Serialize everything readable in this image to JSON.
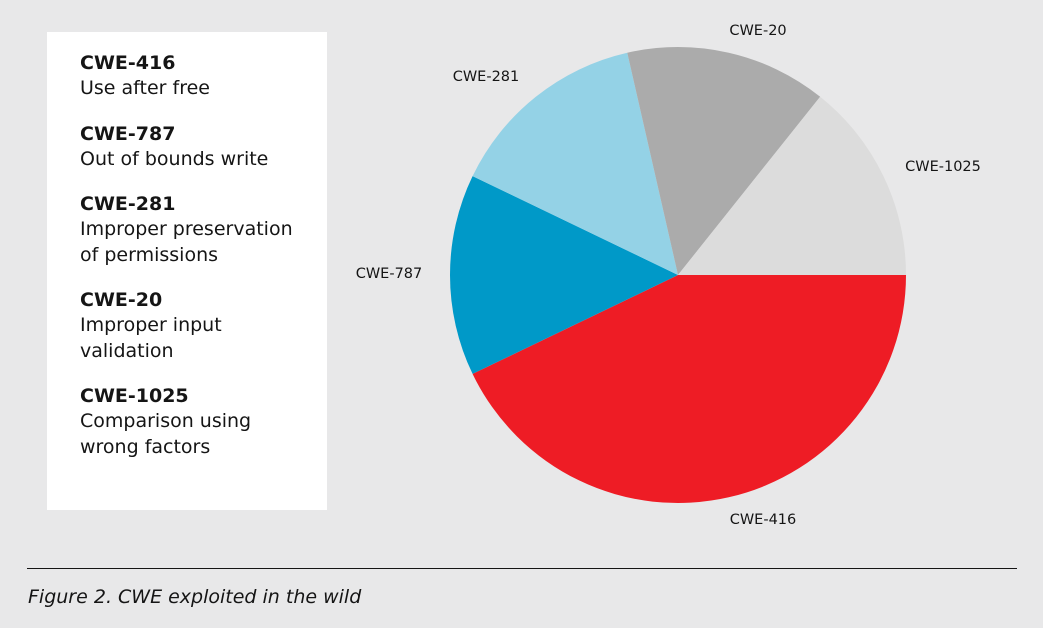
{
  "legend": {
    "entries": [
      {
        "code": "CWE-416",
        "description": "Use after free"
      },
      {
        "code": "CWE-787",
        "description": "Out of bounds write"
      },
      {
        "code": "CWE-281",
        "description": "Improper preservation\nof permissions"
      },
      {
        "code": "CWE-20",
        "description": "Improper input\nvalidation"
      },
      {
        "code": "CWE-1025",
        "description": "Comparison using\nwrong factors"
      }
    ]
  },
  "caption": "Figure 2. CWE exploited in the wild",
  "colors": {
    "CWE-416": "#ee1c25",
    "CWE-787": "#0099c8",
    "CWE-281": "#94d2e6",
    "CWE-20": "#ababab",
    "CWE-1025": "#dcdcdc"
  },
  "chart_data": {
    "type": "pie",
    "slices": [
      {
        "label": "CWE-416",
        "value": 42.9
      },
      {
        "label": "CWE-787",
        "value": 14.3
      },
      {
        "label": "CWE-281",
        "value": 14.3
      },
      {
        "label": "CWE-20",
        "value": 14.3
      },
      {
        "label": "CWE-1025",
        "value": 14.3
      }
    ]
  }
}
